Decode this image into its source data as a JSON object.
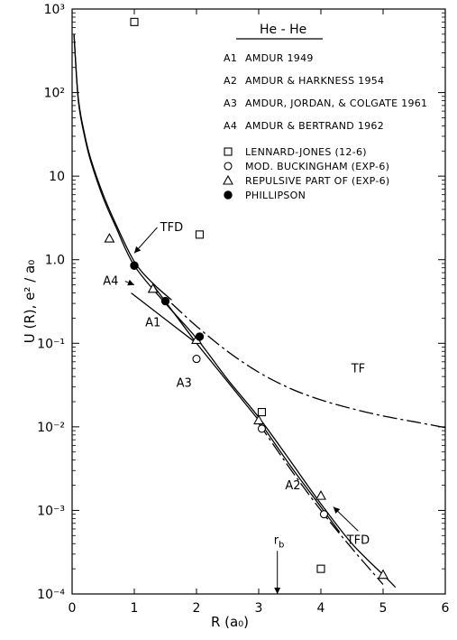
{
  "chart_data": {
    "type": "line",
    "title": "",
    "xlabel": "R (a₀)",
    "ylabel": "U (R), e² / a₀",
    "xlim": [
      0,
      6
    ],
    "ylim": [
      0.0001,
      1000
    ],
    "yscale": "log",
    "x_ticks": [
      {
        "value": 0,
        "label": "0"
      },
      {
        "value": 1,
        "label": "1"
      },
      {
        "value": 2,
        "label": "2"
      },
      {
        "value": 3,
        "label": "3"
      },
      {
        "value": 4,
        "label": "4"
      },
      {
        "value": 5,
        "label": "5"
      },
      {
        "value": 6,
        "label": "6"
      }
    ],
    "y_ticks": [
      {
        "value": 1000,
        "label": "10³"
      },
      {
        "value": 100,
        "label": "10²"
      },
      {
        "value": 10,
        "label": "10"
      },
      {
        "value": 1,
        "label": "1.0"
      },
      {
        "value": 0.1,
        "label": "10⁻¹"
      },
      {
        "value": 0.01,
        "label": "10⁻²"
      },
      {
        "value": 0.001,
        "label": "10⁻³"
      },
      {
        "value": 0.0001,
        "label": "10⁻⁴"
      }
    ],
    "grid": false,
    "legend": {
      "placement": "top-right",
      "header": "He - He",
      "entries": [
        {
          "code": "A1",
          "text": "AMDUR 1949"
        },
        {
          "code": "A2",
          "text": "AMDUR & HARKNESS 1954"
        },
        {
          "code": "A3",
          "text": "AMDUR, JORDAN, & COLGATE 1961"
        },
        {
          "code": "A4",
          "text": "AMDUR & BERTRAND 1962"
        },
        {
          "marker": "square",
          "text": "LENNARD-JONES (12-6)"
        },
        {
          "marker": "circle",
          "text": "MOD. BUCKINGHAM (EXP-6)"
        },
        {
          "marker": "triangle",
          "text": "REPULSIVE PART OF (EXP-6)"
        },
        {
          "marker": "filled-circle",
          "text": "PHILLIPSON"
        }
      ]
    },
    "series": [
      {
        "style": "solid",
        "label": "TFD",
        "x": [
          0.03,
          0.1,
          0.2,
          0.3,
          0.5,
          0.7,
          1.0,
          1.5,
          2.0,
          2.5,
          3.0,
          3.5,
          4.0,
          4.5,
          5.0,
          5.2
        ],
        "y": [
          500,
          80,
          30,
          15,
          5.5,
          2.5,
          0.85,
          0.3,
          0.115,
          0.037,
          0.013,
          0.004,
          0.0012,
          0.0004,
          0.00017,
          0.00012
        ]
      },
      {
        "style": "solid",
        "label": "",
        "x": [
          0.03,
          0.1,
          0.2,
          0.3,
          0.5,
          0.7,
          1.0,
          1.3,
          1.6
        ],
        "y": [
          500,
          85,
          32,
          16,
          6.0,
          2.7,
          0.95,
          0.52,
          0.33
        ]
      },
      {
        "style": "dashed",
        "label": "TF",
        "x": [
          1.6,
          2.0,
          2.5,
          3.0,
          3.5,
          4.0,
          4.5,
          5.0,
          5.5,
          6.0
        ],
        "y": [
          0.3,
          0.16,
          0.08,
          0.045,
          0.029,
          0.021,
          0.0165,
          0.0135,
          0.0115,
          0.0098
        ]
      },
      {
        "style": "solid",
        "label": "A1",
        "x": [
          0.95,
          2.0
        ],
        "y": [
          0.4,
          0.1
        ]
      },
      {
        "style": "solid",
        "label": "A4",
        "x": [
          1.3,
          2.0
        ],
        "y": [
          0.5,
          0.1
        ]
      },
      {
        "style": "solid",
        "label": "A3",
        "x": [
          2.0,
          3.0
        ],
        "y": [
          0.1,
          0.012
        ]
      },
      {
        "style": "solid",
        "label": "A2",
        "x": [
          3.0,
          3.5,
          4.0,
          4.3
        ],
        "y": [
          0.012,
          0.0035,
          0.0011,
          0.00055
        ]
      },
      {
        "style": "dashed",
        "label": "",
        "x": [
          3.0,
          3.5,
          4.0,
          4.5,
          5.0
        ],
        "y": [
          0.011,
          0.0032,
          0.001,
          0.00035,
          0.00013
        ]
      }
    ],
    "points": [
      {
        "marker": "square",
        "x": 1.0,
        "y": 700
      },
      {
        "marker": "square",
        "x": 2.05,
        "y": 2.0
      },
      {
        "marker": "square",
        "x": 3.05,
        "y": 0.015
      },
      {
        "marker": "square",
        "x": 4.0,
        "y": 0.0002
      },
      {
        "marker": "circle",
        "x": 2.0,
        "y": 0.065
      },
      {
        "marker": "circle",
        "x": 3.05,
        "y": 0.0095
      },
      {
        "marker": "circle",
        "x": 4.05,
        "y": 0.0009
      },
      {
        "marker": "triangle",
        "x": 0.6,
        "y": 1.8
      },
      {
        "marker": "triangle",
        "x": 1.3,
        "y": 0.45
      },
      {
        "marker": "triangle",
        "x": 2.0,
        "y": 0.11
      },
      {
        "marker": "triangle",
        "x": 3.0,
        "y": 0.012
      },
      {
        "marker": "triangle",
        "x": 4.0,
        "y": 0.0015
      },
      {
        "marker": "triangle",
        "x": 5.0,
        "y": 0.00017
      },
      {
        "marker": "filled-circle",
        "x": 1.0,
        "y": 0.85
      },
      {
        "marker": "filled-circle",
        "x": 1.5,
        "y": 0.32
      },
      {
        "marker": "filled-circle",
        "x": 2.05,
        "y": 0.12
      }
    ],
    "annotations": [
      {
        "text": "TFD",
        "x": 1.6,
        "y": 2.2,
        "arrow_to": {
          "x": 1.0,
          "y": 1.2
        }
      },
      {
        "text": "A4",
        "x": 0.62,
        "y": 0.5,
        "arrow_to": {
          "x": 1.0,
          "y": 0.5
        }
      },
      {
        "text": "A1",
        "x": 1.3,
        "y": 0.16
      },
      {
        "text": "A3",
        "x": 1.8,
        "y": 0.03
      },
      {
        "text": "TF",
        "x": 4.6,
        "y": 0.045
      },
      {
        "text": "A2",
        "x": 3.55,
        "y": 0.0018
      },
      {
        "text": "TFD",
        "x": 4.6,
        "y": 0.0004,
        "arrow_to": {
          "x": 4.2,
          "y": 0.0011
        }
      },
      {
        "text": "r_b",
        "x": 3.3,
        "y": 0.0004,
        "arrow_to": {
          "x": 3.3,
          "y": 0.0001
        }
      }
    ]
  }
}
